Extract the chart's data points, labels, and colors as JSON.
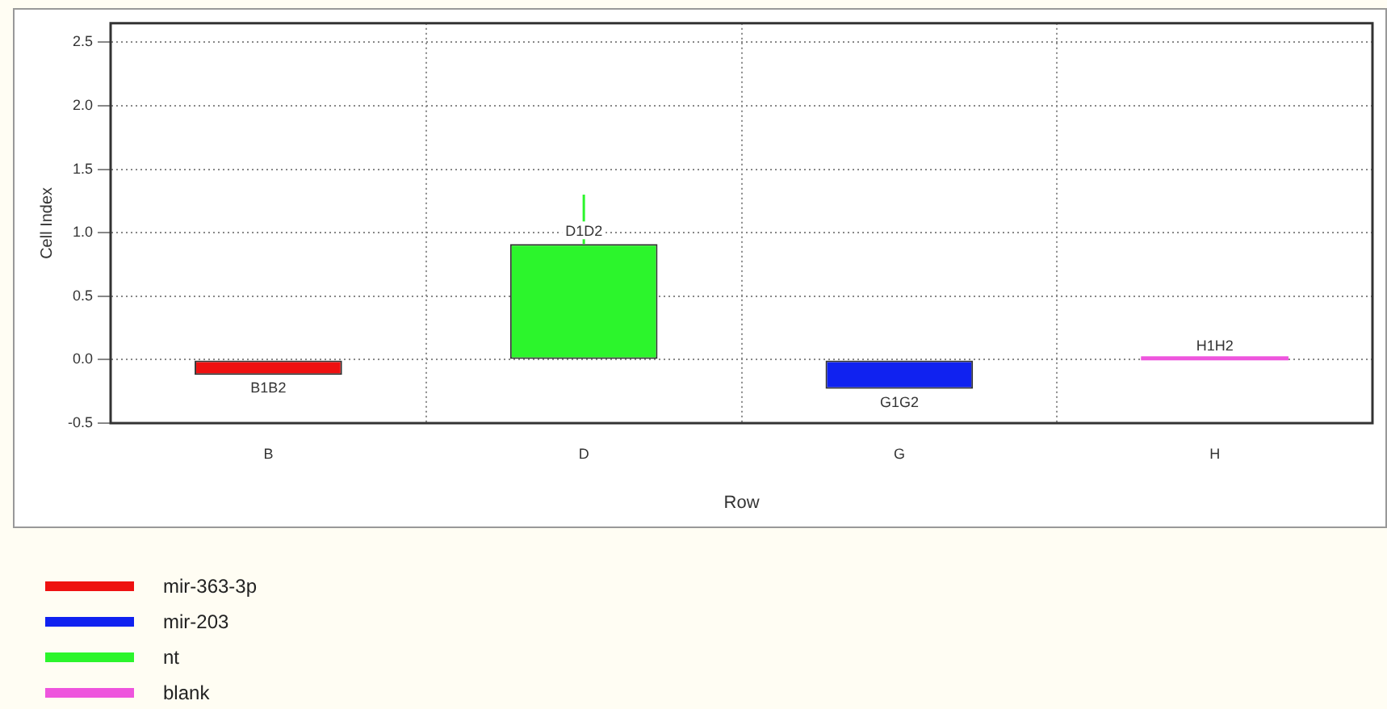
{
  "chart_data": {
    "type": "bar",
    "xlabel": "Row",
    "ylabel": "Cell Index",
    "categories": [
      "B",
      "D",
      "G",
      "H"
    ],
    "series": [
      {
        "name": "mir-363-3p",
        "color": "#ee1111",
        "values": [
          -0.12,
          null,
          null,
          null
        ],
        "value_labels": [
          "B1B2",
          null,
          null,
          null
        ]
      },
      {
        "name": "mir-203",
        "color": "#1022f0",
        "values": [
          null,
          null,
          -0.23,
          null
        ],
        "value_labels": [
          null,
          null,
          "G1G2",
          null
        ]
      },
      {
        "name": "nt",
        "color": "#2cf52c",
        "values": [
          null,
          0.91,
          null,
          null
        ],
        "value_labels": [
          null,
          "D1D2",
          null,
          null
        ],
        "errors": [
          null,
          [
            0.91,
            1.3
          ],
          null,
          null
        ]
      },
      {
        "name": "blank",
        "color": "#ee55dd",
        "values": [
          null,
          null,
          null,
          0.01
        ],
        "value_labels": [
          null,
          null,
          null,
          "H1H2"
        ]
      }
    ],
    "ylim": [
      -0.5,
      2.65
    ],
    "yticks": [
      -0.5,
      {
        "value": 0,
        "label": "0.0"
      },
      0.5,
      {
        "value": 1,
        "label": "1.0"
      },
      1.5,
      {
        "value": 2,
        "label": "2.0"
      },
      2.5
    ],
    "grid": true,
    "legend": "bottom left"
  }
}
